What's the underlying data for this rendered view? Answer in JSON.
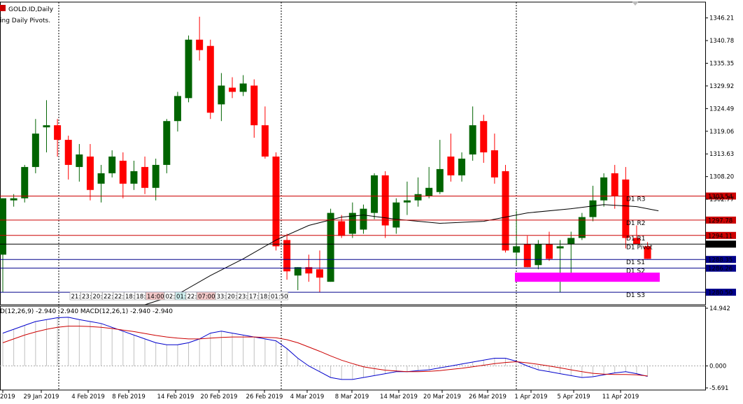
{
  "header": {
    "symbol_line": "GOLD.ID,Daily",
    "indicator_line": "ing Daily Pivots."
  },
  "macd_label": "D(12,26,9) -2.940 -2.940 MACD(12,26,1) -2.940 -2.940",
  "timers": [
    "21:",
    "23:",
    "20:",
    "22:",
    "22:",
    "18:",
    "18:",
    "14:00",
    "02:",
    "01:",
    "22:",
    "07:00",
    "33:",
    "20:",
    "23:",
    "17:",
    "18:",
    "01:50"
  ],
  "colors": {
    "bull": "#006400",
    "bear": "#ff0000",
    "ma": "#000000",
    "resistance": "#cc0000",
    "support": "#00008b",
    "pivot": "#000000",
    "zone": "#ff00ff",
    "macd_main": "#0000cc",
    "macd_signal": "#cc0000"
  },
  "chart_data": [
    {
      "type": "candlestick",
      "ylim": [
        1277.5,
        1350.0
      ],
      "y_ticks": [
        "1346.21",
        "1340.78",
        "1335.35",
        "1329.92",
        "1324.49",
        "1319.06",
        "1313.63",
        "1308.20",
        "1302.77"
      ],
      "x_tick_labels": [
        "2019",
        "29 Jan 2019",
        "4 Feb 2019",
        "8 Feb 2019",
        "14 Feb 2019",
        "20 Feb 2019",
        "26 Feb 2019",
        "4 Mar 2019",
        "8 Mar 2019",
        "14 Mar 2019",
        "20 Mar 2019",
        "26 Mar 2019",
        "1 Apr 2019",
        "5 Apr 2019",
        "11 Apr 2019"
      ],
      "candles": [
        {
          "o": 1289.5,
          "h": 1303.0,
          "l": 1280.5,
          "c": 1303.0
        },
        {
          "o": 1302.5,
          "h": 1304.0,
          "l": 1301.0,
          "c": 1303.0
        },
        {
          "o": 1303.0,
          "h": 1311.0,
          "l": 1302.0,
          "c": 1310.5
        },
        {
          "o": 1310.5,
          "h": 1322.0,
          "l": 1309.0,
          "c": 1318.5
        },
        {
          "o": 1320.0,
          "h": 1326.5,
          "l": 1314.0,
          "c": 1320.5
        },
        {
          "o": 1320.5,
          "h": 1322.0,
          "l": 1313.0,
          "c": 1317.0
        },
        {
          "o": 1317.0,
          "h": 1318.0,
          "l": 1307.5,
          "c": 1311.0
        },
        {
          "o": 1310.5,
          "h": 1316.0,
          "l": 1307.0,
          "c": 1313.5
        },
        {
          "o": 1313.0,
          "h": 1316.0,
          "l": 1302.5,
          "c": 1305.0
        },
        {
          "o": 1306.5,
          "h": 1311.0,
          "l": 1302.0,
          "c": 1309.0
        },
        {
          "o": 1309.0,
          "h": 1314.5,
          "l": 1308.0,
          "c": 1313.0
        },
        {
          "o": 1312.0,
          "h": 1314.0,
          "l": 1303.0,
          "c": 1306.5
        },
        {
          "o": 1306.5,
          "h": 1312.0,
          "l": 1305.0,
          "c": 1309.5
        },
        {
          "o": 1310.5,
          "h": 1313.0,
          "l": 1304.0,
          "c": 1305.5
        },
        {
          "o": 1305.5,
          "h": 1312.5,
          "l": 1302.5,
          "c": 1311.0
        },
        {
          "o": 1311.0,
          "h": 1322.0,
          "l": 1309.0,
          "c": 1321.5
        },
        {
          "o": 1321.5,
          "h": 1328.5,
          "l": 1319.0,
          "c": 1327.5
        },
        {
          "o": 1327.0,
          "h": 1342.0,
          "l": 1326.0,
          "c": 1341.0
        },
        {
          "o": 1341.0,
          "h": 1346.5,
          "l": 1336.0,
          "c": 1338.5
        },
        {
          "o": 1339.5,
          "h": 1341.0,
          "l": 1322.0,
          "c": 1323.5
        },
        {
          "o": 1325.5,
          "h": 1333.0,
          "l": 1321.5,
          "c": 1330.0
        },
        {
          "o": 1329.5,
          "h": 1332.0,
          "l": 1327.0,
          "c": 1328.5
        },
        {
          "o": 1328.5,
          "h": 1332.5,
          "l": 1327.5,
          "c": 1330.5
        },
        {
          "o": 1330.0,
          "h": 1331.5,
          "l": 1317.5,
          "c": 1320.5
        },
        {
          "o": 1320.5,
          "h": 1325.0,
          "l": 1312.5,
          "c": 1313.0
        },
        {
          "o": 1313.0,
          "h": 1314.0,
          "l": 1290.5,
          "c": 1291.5
        },
        {
          "o": 1293.0,
          "h": 1294.5,
          "l": 1283.5,
          "c": 1285.5
        },
        {
          "o": 1284.5,
          "h": 1286.5,
          "l": 1281.0,
          "c": 1286.5
        },
        {
          "o": 1286.5,
          "h": 1289.5,
          "l": 1283.0,
          "c": 1285.0
        },
        {
          "o": 1286.0,
          "h": 1290.5,
          "l": 1280.5,
          "c": 1284.0
        },
        {
          "o": 1283.0,
          "h": 1300.5,
          "l": 1283.0,
          "c": 1299.5
        },
        {
          "o": 1297.5,
          "h": 1299.0,
          "l": 1293.5,
          "c": 1294.0
        },
        {
          "o": 1294.5,
          "h": 1302.0,
          "l": 1293.5,
          "c": 1299.5
        },
        {
          "o": 1295.5,
          "h": 1301.5,
          "l": 1294.5,
          "c": 1300.5
        },
        {
          "o": 1299.5,
          "h": 1309.0,
          "l": 1298.0,
          "c": 1308.5
        },
        {
          "o": 1308.5,
          "h": 1309.5,
          "l": 1293.5,
          "c": 1296.5
        },
        {
          "o": 1296.0,
          "h": 1303.0,
          "l": 1294.5,
          "c": 1302.0
        },
        {
          "o": 1302.0,
          "h": 1307.0,
          "l": 1299.0,
          "c": 1302.5
        },
        {
          "o": 1302.5,
          "h": 1308.0,
          "l": 1301.0,
          "c": 1304.0
        },
        {
          "o": 1303.5,
          "h": 1310.5,
          "l": 1303.0,
          "c": 1305.5
        },
        {
          "o": 1304.5,
          "h": 1317.0,
          "l": 1304.0,
          "c": 1310.0
        },
        {
          "o": 1313.0,
          "h": 1318.5,
          "l": 1307.0,
          "c": 1308.5
        },
        {
          "o": 1308.5,
          "h": 1314.0,
          "l": 1307.0,
          "c": 1312.5
        },
        {
          "o": 1313.5,
          "h": 1325.0,
          "l": 1312.0,
          "c": 1320.5
        },
        {
          "o": 1321.5,
          "h": 1323.0,
          "l": 1311.5,
          "c": 1314.0
        },
        {
          "o": 1314.5,
          "h": 1318.5,
          "l": 1306.5,
          "c": 1308.0
        },
        {
          "o": 1309.5,
          "h": 1311.0,
          "l": 1290.0,
          "c": 1290.5
        },
        {
          "o": 1290.0,
          "h": 1300.0,
          "l": 1287.0,
          "c": 1291.5
        },
        {
          "o": 1292.0,
          "h": 1294.0,
          "l": 1286.5,
          "c": 1286.5
        },
        {
          "o": 1287.0,
          "h": 1293.0,
          "l": 1286.0,
          "c": 1292.0
        },
        {
          "o": 1292.0,
          "h": 1295.0,
          "l": 1288.0,
          "c": 1288.5
        },
        {
          "o": 1291.0,
          "h": 1293.0,
          "l": 1280.5,
          "c": 1291.5
        },
        {
          "o": 1292.0,
          "h": 1295.0,
          "l": 1284.0,
          "c": 1293.5
        },
        {
          "o": 1293.5,
          "h": 1299.5,
          "l": 1293.0,
          "c": 1298.5
        },
        {
          "o": 1298.5,
          "h": 1306.0,
          "l": 1297.5,
          "c": 1302.5
        },
        {
          "o": 1302.5,
          "h": 1309.0,
          "l": 1301.0,
          "c": 1308.0
        },
        {
          "o": 1309.0,
          "h": 1311.0,
          "l": 1300.5,
          "c": 1303.5
        },
        {
          "o": 1307.5,
          "h": 1310.5,
          "l": 1291.0,
          "c": 1293.5
        },
        {
          "o": 1293.5,
          "h": 1296.5,
          "l": 1292.0,
          "c": 1292.0
        },
        {
          "o": 1291.5,
          "h": 1292.5,
          "l": 1288.5,
          "c": 1288.5
        }
      ],
      "moving_average": [
        [
          13,
          1277.5
        ],
        [
          16,
          1280.0
        ],
        [
          19,
          1284.5
        ],
        [
          22,
          1288.5
        ],
        [
          25,
          1293.0
        ],
        [
          28,
          1296.5
        ],
        [
          31,
          1298.5
        ],
        [
          33,
          1299.0
        ],
        [
          36,
          1298.0
        ],
        [
          40,
          1297.0
        ],
        [
          44,
          1297.5
        ],
        [
          48,
          1299.5
        ],
        [
          52,
          1300.5
        ],
        [
          55,
          1301.5
        ],
        [
          58,
          1301.0
        ],
        [
          60,
          1300.0
        ]
      ],
      "levels": [
        {
          "name": "D1 R3",
          "value": 1303.54,
          "price_label": "1303.54",
          "kind": "resistance"
        },
        {
          "name": "D1 R2",
          "value": 1297.78,
          "price_label": "1297.78",
          "kind": "resistance"
        },
        {
          "name": "D1 R1",
          "value": 1294.11,
          "price_label": "1294.11",
          "kind": "resistance"
        },
        {
          "name": "D1 Pivot",
          "value": 1292.02,
          "price_label": "1292.02",
          "kind": "pivot"
        },
        {
          "name": "D1 S1",
          "value": 1288.35,
          "price_label": "1288.35",
          "kind": "support"
        },
        {
          "name": "D1 S2",
          "value": 1286.26,
          "price_label": "1286.26",
          "kind": "support"
        },
        {
          "name": "D1 S3",
          "value": 1280.5,
          "price_label": "1280.50",
          "kind": "support"
        }
      ],
      "zone": {
        "from": 1285.2,
        "to": 1283.0
      }
    },
    {
      "type": "macd",
      "ylim": [
        -5.691,
        14.942
      ],
      "y_ticks": [
        "14.942",
        "0.000",
        "-5.691"
      ],
      "main_line": [
        8.5,
        9.5,
        10.5,
        11.5,
        12.0,
        12.5,
        12.6,
        12.0,
        11.5,
        11.0,
        10.0,
        9.0,
        8.0,
        7.0,
        6.0,
        5.5,
        5.5,
        6.0,
        7.0,
        8.5,
        9.0,
        8.5,
        8.0,
        7.5,
        7.0,
        6.5,
        4.5,
        2.0,
        0.0,
        -1.5,
        -3.0,
        -3.5,
        -3.5,
        -3.0,
        -2.5,
        -2.0,
        -1.5,
        -1.5,
        -1.2,
        -1.0,
        -0.5,
        0.0,
        0.5,
        1.0,
        1.5,
        2.0,
        2.0,
        1.2,
        0.0,
        -1.0,
        -1.5,
        -2.0,
        -2.5,
        -3.0,
        -2.8,
        -2.3,
        -1.8,
        -1.5,
        -2.0,
        -2.7
      ],
      "signal_line": [
        6.0,
        7.0,
        8.0,
        8.8,
        9.5,
        10.0,
        10.3,
        10.3,
        10.2,
        10.0,
        9.7,
        9.3,
        8.9,
        8.4,
        7.9,
        7.5,
        7.2,
        7.0,
        7.0,
        7.2,
        7.4,
        7.5,
        7.5,
        7.5,
        7.4,
        7.3,
        6.8,
        6.0,
        4.9,
        3.8,
        2.6,
        1.5,
        0.6,
        -0.2,
        -0.7,
        -1.1,
        -1.3,
        -1.5,
        -1.5,
        -1.4,
        -1.2,
        -0.9,
        -0.6,
        -0.2,
        0.2,
        0.6,
        0.9,
        1.1,
        0.8,
        0.4,
        0.0,
        -0.5,
        -1.0,
        -1.5,
        -1.9,
        -2.1,
        -2.2,
        -2.2,
        -2.3,
        -2.6
      ],
      "histogram": [
        8.5,
        9.5,
        10.5,
        11.5,
        12.0,
        12.5,
        12.6,
        12.0,
        11.5,
        11.0,
        10.0,
        9.0,
        8.0,
        7.0,
        6.0,
        5.5,
        5.5,
        6.0,
        7.0,
        8.5,
        9.0,
        8.5,
        8.0,
        7.5,
        7.0,
        6.5,
        4.5,
        2.0,
        0.0,
        -1.5,
        -3.0,
        -3.5,
        -3.5,
        -3.0,
        -2.5,
        -2.0,
        -1.5,
        -1.5,
        -1.2,
        -1.0,
        -0.5,
        0.0,
        0.5,
        1.0,
        1.5,
        2.0,
        2.0,
        1.2,
        0.0,
        -1.0,
        -1.5,
        -2.0,
        -2.5,
        -3.0,
        -2.8,
        -2.3,
        -1.8,
        -1.5,
        -2.0,
        -2.7
      ]
    }
  ]
}
